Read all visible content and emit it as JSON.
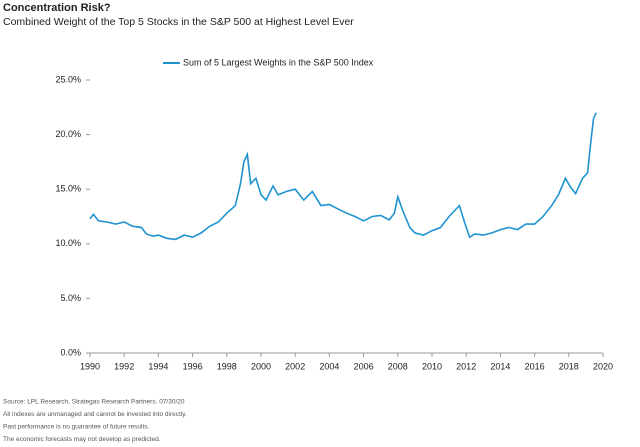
{
  "chart_data": {
    "type": "line",
    "title": "Concentration Risk?",
    "subtitle": "Combined Weight of the Top 5 Stocks in the S&P 500 at Highest Level Ever",
    "x": [
      1990.0,
      1990.2,
      1990.5,
      1991.0,
      1991.5,
      1992.0,
      1992.5,
      1993.0,
      1993.3,
      1993.7,
      1994.0,
      1994.5,
      1995.0,
      1995.5,
      1996.0,
      1996.5,
      1997.0,
      1997.5,
      1998.0,
      1998.5,
      1998.8,
      1999.0,
      1999.2,
      1999.4,
      1999.7,
      2000.0,
      2000.3,
      2000.7,
      2001.0,
      2001.5,
      2002.0,
      2002.5,
      2003.0,
      2003.5,
      2004.0,
      2004.5,
      2005.0,
      2005.5,
      2006.0,
      2006.5,
      2007.0,
      2007.5,
      2007.8,
      2008.0,
      2008.3,
      2008.7,
      2009.0,
      2009.5,
      2010.0,
      2010.5,
      2011.0,
      2011.3,
      2011.6,
      2011.9,
      2012.2,
      2012.5,
      2013.0,
      2013.5,
      2014.0,
      2014.5,
      2015.0,
      2015.5,
      2016.0,
      2016.5,
      2017.0,
      2017.4,
      2017.8,
      2018.1,
      2018.4,
      2018.8,
      2019.1,
      2019.3,
      2019.45,
      2019.6
    ],
    "series": [
      {
        "name": "Sum of 5 Largest Weights in the S&P 500 Index",
        "color": "#1f93d0",
        "values": [
          12.3,
          12.7,
          12.1,
          12.0,
          11.8,
          12.0,
          11.6,
          11.5,
          10.9,
          10.7,
          10.8,
          10.5,
          10.4,
          10.8,
          10.6,
          11.0,
          11.6,
          12.0,
          12.8,
          13.5,
          15.5,
          17.5,
          18.2,
          15.5,
          16.0,
          14.5,
          14.0,
          15.3,
          14.5,
          14.8,
          15.0,
          14.0,
          14.8,
          13.5,
          13.6,
          13.2,
          12.8,
          12.5,
          12.1,
          12.5,
          12.6,
          12.2,
          12.8,
          14.3,
          13.0,
          11.5,
          11.0,
          10.8,
          11.2,
          11.5,
          12.5,
          13.0,
          13.5,
          12.0,
          10.6,
          10.9,
          10.8,
          11.0,
          11.3,
          11.5,
          11.3,
          11.8,
          11.8,
          12.5,
          13.5,
          14.5,
          16.0,
          15.2,
          14.6,
          16.0,
          16.5,
          19.5,
          21.5,
          22.0
        ]
      }
    ],
    "xlim": [
      1990,
      2020
    ],
    "xticks": [
      1990,
      1992,
      1994,
      1996,
      1998,
      2000,
      2002,
      2004,
      2006,
      2008,
      2010,
      2012,
      2014,
      2016,
      2018,
      2020
    ],
    "ylim": [
      0,
      25
    ],
    "yticks": [
      {
        "value": 0,
        "label": "0.0%"
      },
      {
        "value": 5,
        "label": "5.0%"
      },
      {
        "value": 10,
        "label": "10.0%"
      },
      {
        "value": 15,
        "label": "15.0%"
      },
      {
        "value": 20,
        "label": "20.0%"
      },
      {
        "value": 25,
        "label": "25.0%"
      }
    ],
    "notes": [
      "Source: LPL Research, Strategas Research Partners. 07/30/20",
      "All indexes are unmanaged and cannot be invested into directly.",
      "Past performance is no guarantee of future results.",
      "The economic forecasts may not develop as predicted."
    ]
  }
}
